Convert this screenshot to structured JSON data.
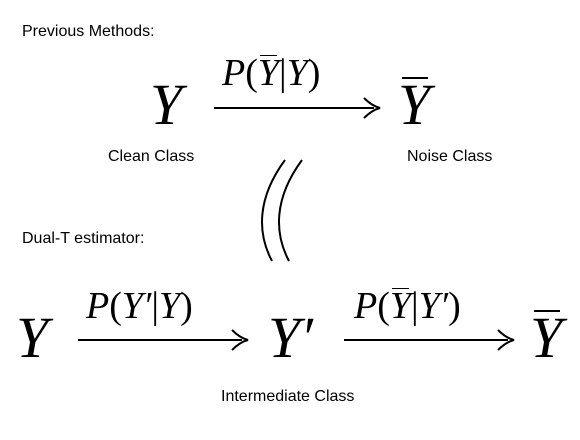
{
  "top": {
    "heading": "Previous Methods:",
    "source_symbol": "Y",
    "formula": {
      "fn": "P",
      "lhs_var": "Y",
      "rhs_var": "Y"
    },
    "target_symbol": "Y",
    "source_label": "Clean Class",
    "target_label": "Noise Class"
  },
  "bottom": {
    "heading": "Dual-T estimator:",
    "source_symbol": "Y",
    "formula1": {
      "fn": "P",
      "lhs_var": "Y",
      "prime": "′",
      "rhs_var": "Y"
    },
    "middle_symbol": "Y",
    "middle_prime": "′",
    "formula2": {
      "fn": "P",
      "lhs_var": "Y",
      "rhs_var": "Y",
      "prime": "′"
    },
    "target_symbol": "Y",
    "middle_label": "Intermediate Class"
  }
}
